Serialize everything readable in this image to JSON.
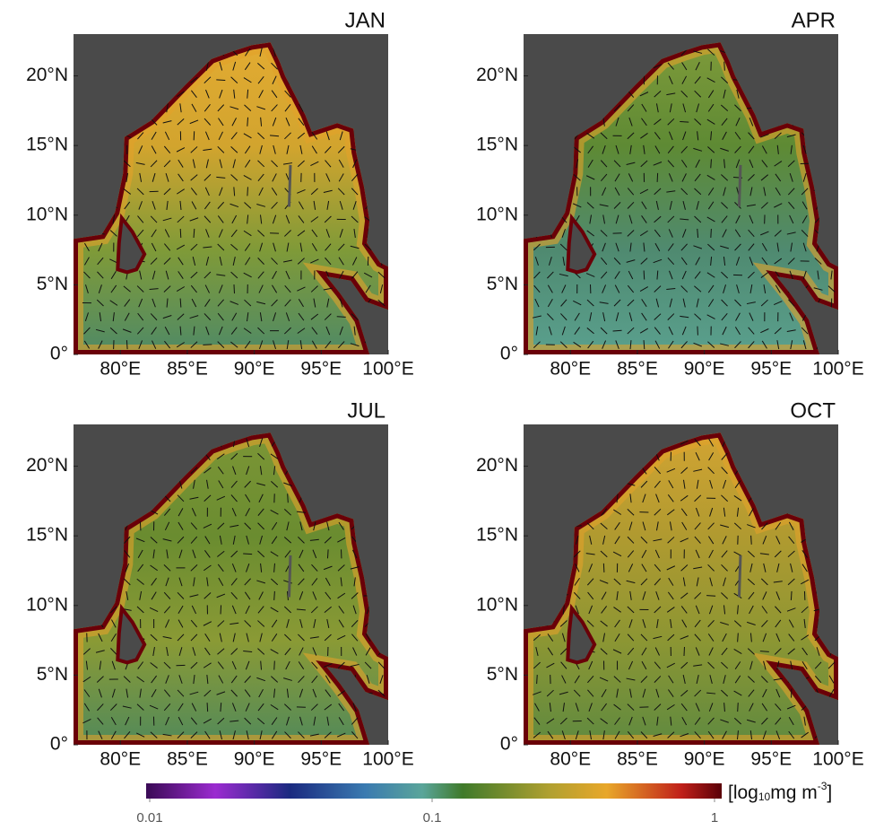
{
  "panels": [
    {
      "title": "JAN"
    },
    {
      "title": "APR"
    },
    {
      "title": "JUL"
    },
    {
      "title": "OCT"
    }
  ],
  "xlim": [
    76.5,
    100
  ],
  "ylim": [
    0,
    23
  ],
  "xticks": [
    {
      "value": 80,
      "label": "80°E"
    },
    {
      "value": 85,
      "label": "85°E"
    },
    {
      "value": 90,
      "label": "90°E"
    },
    {
      "value": 95,
      "label": "95°E"
    },
    {
      "value": 100,
      "label": "100°E"
    }
  ],
  "yticks": [
    {
      "value": 0,
      "label": "0°"
    },
    {
      "value": 5,
      "label": "5°N"
    },
    {
      "value": 10,
      "label": "10°N"
    },
    {
      "value": 15,
      "label": "15°N"
    },
    {
      "value": 20,
      "label": "20°N"
    }
  ],
  "colorbar": {
    "lim": [
      0.01,
      1
    ],
    "log": true,
    "ticks": [
      0.01,
      0.1,
      1
    ],
    "unit_label": {
      "pre": "[log",
      "sub": "10",
      "mid": "mg m",
      "sup": "-3",
      "post": "]"
    }
  }
}
